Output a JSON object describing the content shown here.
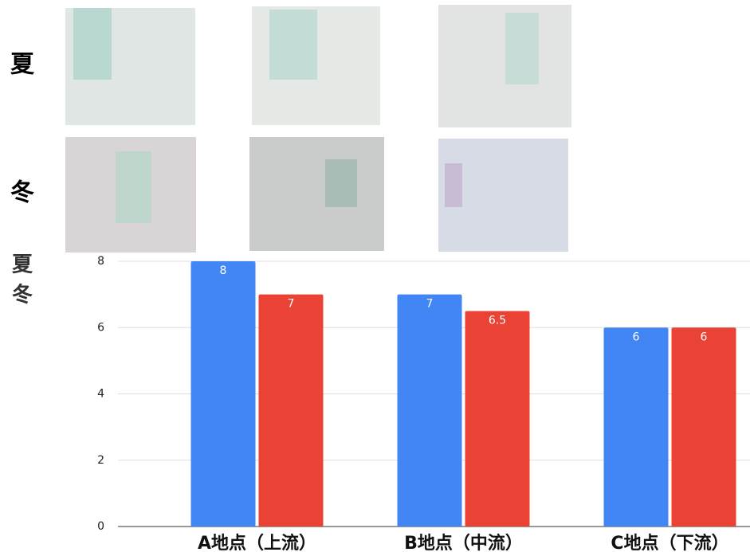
{
  "photos": {
    "rows": [
      "夏",
      "冬"
    ]
  },
  "chart_data": {
    "type": "bar",
    "categories": [
      "A地点（上流）",
      "B地点（中流）",
      "C地点（下流）"
    ],
    "series": [
      {
        "name": "夏",
        "color": "#4285f4",
        "values": [
          8,
          7,
          6
        ]
      },
      {
        "name": "冬",
        "color": "#ea4335",
        "values": [
          7,
          6.5,
          6
        ]
      }
    ],
    "ylim": [
      0,
      8
    ],
    "yticks": [
      0,
      2,
      4,
      6,
      8
    ],
    "grid": true
  }
}
